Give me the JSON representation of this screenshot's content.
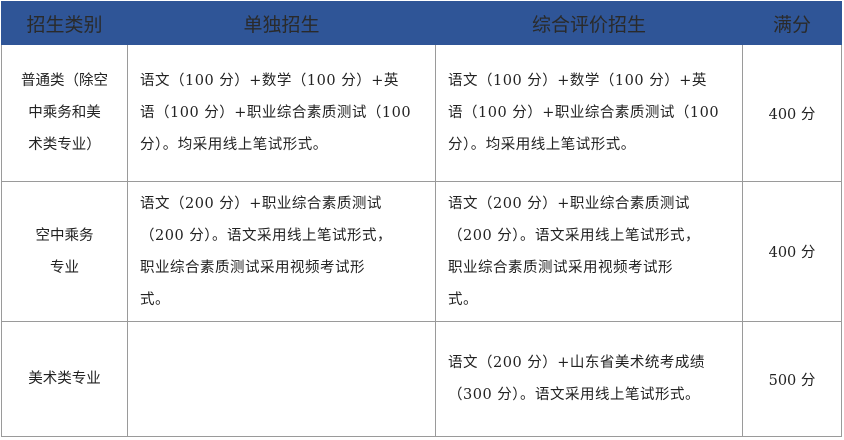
{
  "table": {
    "headers": [
      "招生类别",
      "单独招生",
      "综合评价招生",
      "满分"
    ],
    "header_color": "#2f5597",
    "rows": [
      {
        "category": [
          "普通类（除空",
          "中乘务和美",
          "术类专业）"
        ],
        "single": [
          "语文（100 分）+数学（100 分）+英",
          "语（100 分）+职业综合素质测试（100",
          "分）。均采用线上笔试形式。"
        ],
        "comprehensive": [
          "语文（100 分）+数学（100 分）+英",
          "语（100 分）+职业综合素质测试（100",
          "分）。均采用线上笔试形式。"
        ],
        "score": "400 分"
      },
      {
        "category": [
          "空中乘务",
          "专业"
        ],
        "single": [
          "语文（200 分）+职业综合素质测试",
          "（200 分）。语文采用线上笔试形式，",
          "职业综合素质测试采用视频考试形",
          "式。"
        ],
        "comprehensive": [
          "语文（200 分）+职业综合素质测试",
          "（200 分）。语文采用线上笔试形式，",
          "职业综合素质测试采用视频考试形",
          "式。"
        ],
        "score": "400 分"
      },
      {
        "category": [
          "美术类专业"
        ],
        "single": [],
        "comprehensive": [
          "语文（200 分）+山东省美术统考成绩",
          "（300 分）。语文采用线上笔试形式。"
        ],
        "score": "500 分"
      }
    ]
  }
}
